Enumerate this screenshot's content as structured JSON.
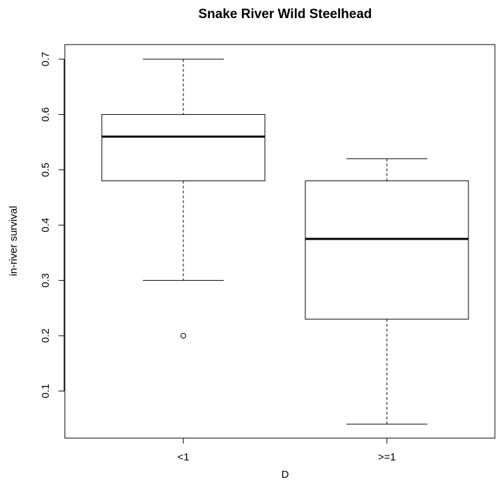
{
  "chart_data": {
    "type": "boxplot",
    "title": "Snake River Wild Steelhead",
    "xlabel": "D",
    "ylabel": "in-river survival",
    "ylim": [
      0.03,
      0.73
    ],
    "y_ticks": [
      "0.1",
      "0.2",
      "0.3",
      "0.4",
      "0.5",
      "0.6",
      "0.7"
    ],
    "categories": [
      "<1",
      ">=1"
    ],
    "boxes": [
      {
        "category": "<1",
        "whisker_low": 0.3,
        "q1": 0.48,
        "median": 0.56,
        "q3": 0.6,
        "whisker_high": 0.7,
        "outliers": [
          0.2
        ]
      },
      {
        "category": ">=1",
        "whisker_low": 0.04,
        "q1": 0.23,
        "median": 0.375,
        "q3": 0.48,
        "whisker_high": 0.52,
        "outliers": []
      }
    ],
    "grid": false,
    "colors": {
      "box_fill": "#ffffff",
      "stroke": "#000000"
    }
  }
}
